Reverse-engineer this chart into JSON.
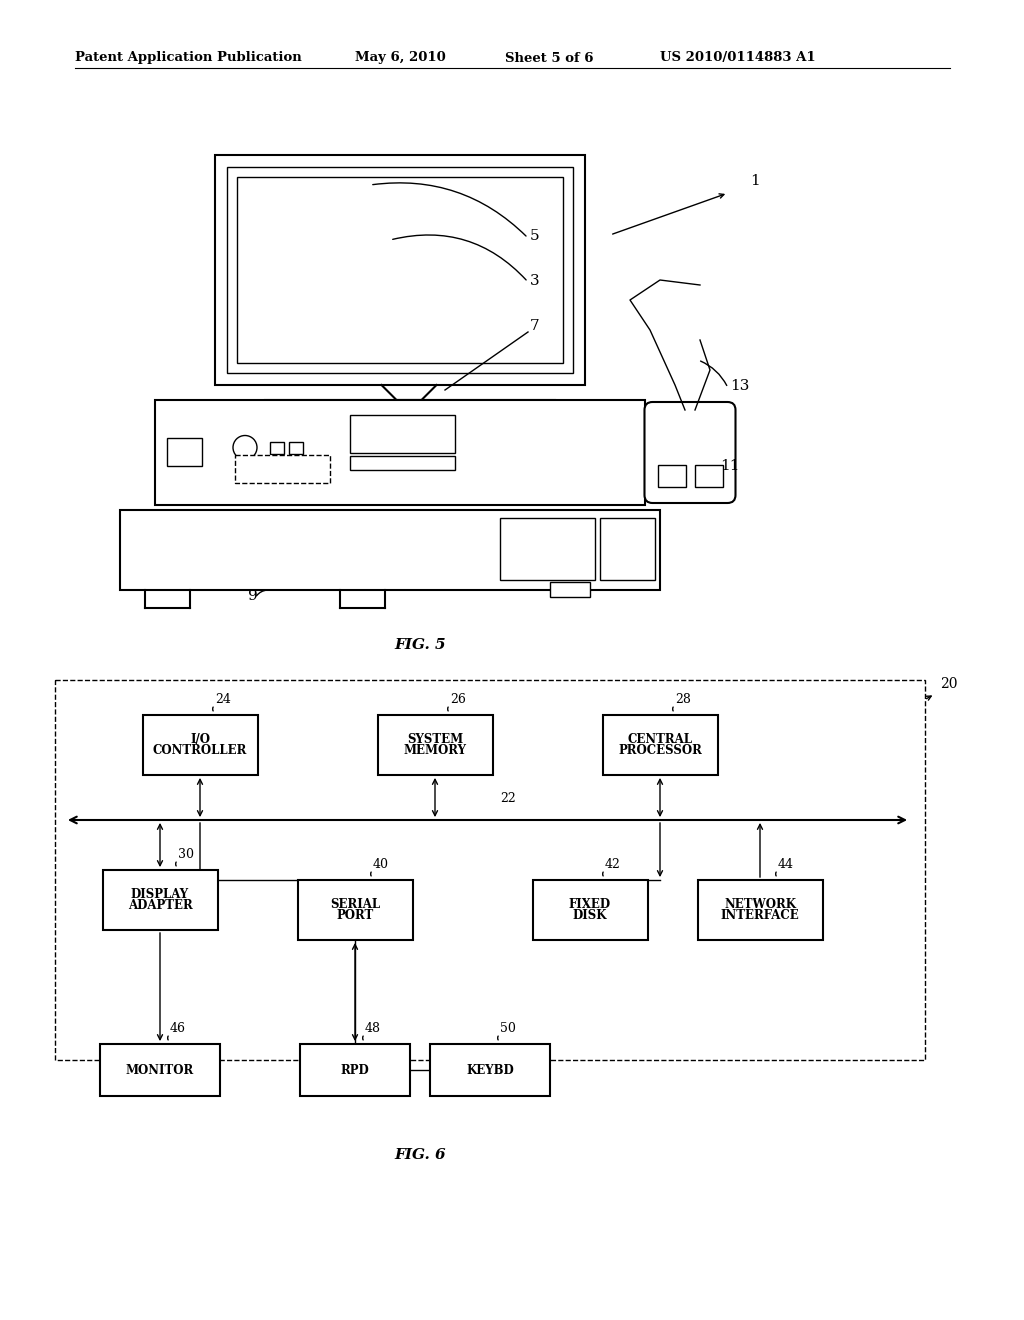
{
  "background_color": "#ffffff",
  "header_text": "Patent Application Publication",
  "header_date": "May 6, 2010",
  "header_sheet": "Sheet 5 of 6",
  "header_patent": "US 2010/0114883 A1",
  "fig5_label": "FIG. 5",
  "fig6_label": "FIG. 6"
}
